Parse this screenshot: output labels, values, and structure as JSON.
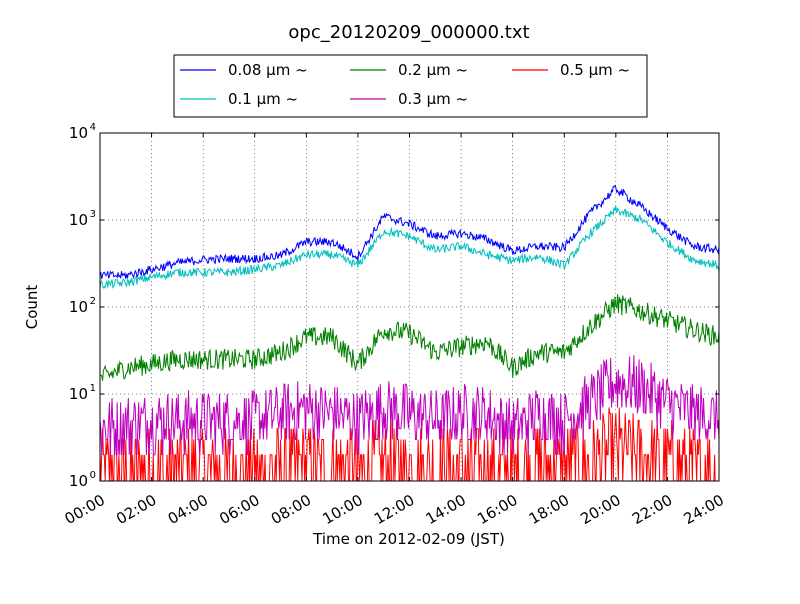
{
  "chart_data": {
    "type": "line",
    "title": "opc_20120209_000000.txt",
    "xlabel": "Time on 2012-02-09 (JST)",
    "ylabel": "Count",
    "y_scale": "log",
    "ylim": [
      1,
      10000
    ],
    "xlim": [
      "00:00",
      "24:00"
    ],
    "grid": true,
    "legend_position": "top-center-outside",
    "x_ticks": [
      "00:00",
      "02:00",
      "04:00",
      "06:00",
      "08:00",
      "10:00",
      "12:00",
      "14:00",
      "16:00",
      "18:00",
      "20:00",
      "22:00",
      "24:00"
    ],
    "y_ticks": [
      {
        "value": 1,
        "base": "10",
        "exp": "0"
      },
      {
        "value": 10,
        "base": "10",
        "exp": "1"
      },
      {
        "value": 100,
        "base": "10",
        "exp": "2"
      },
      {
        "value": 1000,
        "base": "10",
        "exp": "3"
      },
      {
        "value": 10000,
        "base": "10",
        "exp": "4"
      }
    ],
    "x_hours": [
      0,
      1,
      2,
      3,
      4,
      5,
      6,
      7,
      8,
      9,
      10,
      11,
      12,
      13,
      14,
      15,
      16,
      17,
      18,
      19,
      20,
      21,
      22,
      23,
      24
    ],
    "series": [
      {
        "name": "0.08 μm ~",
        "color": "#0000ff",
        "values": [
          230,
          230,
          270,
          320,
          350,
          360,
          360,
          390,
          560,
          560,
          380,
          1100,
          900,
          650,
          700,
          600,
          440,
          500,
          480,
          1200,
          2300,
          1400,
          800,
          500,
          450
        ],
        "noise": 0.05
      },
      {
        "name": "0.1 μm ~",
        "color": "#00bfbf",
        "values": [
          180,
          190,
          220,
          250,
          250,
          250,
          270,
          300,
          400,
          400,
          300,
          750,
          650,
          450,
          500,
          400,
          340,
          380,
          300,
          700,
          1300,
          1000,
          550,
          350,
          300
        ],
        "noise": 0.05
      },
      {
        "name": "0.2 μm ~",
        "color": "#008000",
        "values": [
          15,
          20,
          22,
          25,
          25,
          25,
          25,
          30,
          45,
          45,
          22,
          55,
          50,
          30,
          35,
          40,
          20,
          30,
          30,
          60,
          110,
          90,
          70,
          55,
          45
        ],
        "noise": 0.12
      },
      {
        "name": "0.3 μm ~",
        "color": "#bf00bf",
        "values": [
          4,
          4.5,
          5,
          5,
          5,
          5,
          5,
          6,
          7,
          6,
          5,
          7,
          6,
          5,
          6,
          6,
          4,
          6,
          5,
          8,
          14,
          12,
          8,
          6,
          5
        ],
        "noise": 0.35
      },
      {
        "name": "0.5 μm ~",
        "color": "#ff0000",
        "values": [
          1.3,
          1.3,
          1.3,
          1.3,
          1.3,
          1.3,
          1.3,
          1.4,
          1.5,
          1.4,
          1.4,
          1.6,
          1.5,
          1.4,
          1.4,
          1.4,
          1.3,
          1.5,
          1.5,
          1.7,
          2.3,
          1.9,
          1.6,
          1.4,
          1.4
        ],
        "noise": 0.5
      }
    ]
  }
}
